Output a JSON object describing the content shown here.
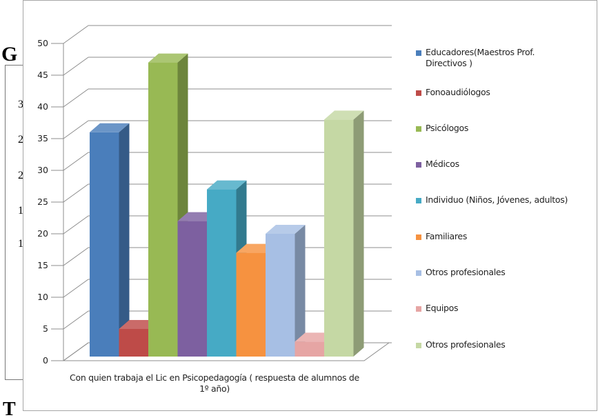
{
  "background_document": {
    "heading_fragment": "G",
    "bottom_fragment": "T",
    "side_fragments": [
      "3",
      "2",
      "2",
      "1",
      "1"
    ]
  },
  "chart_data": {
    "type": "bar",
    "style": "3d-clustered-column",
    "xlabel": "Con quien trabaja el Lic en Psicopedagogía ( respuesta de alumnos de 1º año)",
    "ylabel": "",
    "ylim": [
      0,
      50
    ],
    "y_ticks": [
      0,
      5,
      10,
      15,
      20,
      25,
      30,
      35,
      40,
      45,
      50
    ],
    "grid": true,
    "legend_position": "right",
    "series": [
      {
        "name": "Educadores(Maestros Prof. Directivos )",
        "value": 36,
        "color": "#4a7ebb"
      },
      {
        "name": "Fonoaudiólogos",
        "value": 5,
        "color": "#be4b48"
      },
      {
        "name": "Psicólogos",
        "value": 47,
        "color": "#98b954"
      },
      {
        "name": "Médicos",
        "value": 22,
        "color": "#7d60a0"
      },
      {
        "name": "Individuo (Niños, Jóvenes, adultos)",
        "value": 27,
        "color": "#46aac5"
      },
      {
        "name": "Familiares",
        "value": 17,
        "color": "#f69240"
      },
      {
        "name": "Otros profesionales",
        "value": 20,
        "color": "#a7bfe4"
      },
      {
        "name": "Equipos",
        "value": 3,
        "color": "#e6a5a4"
      },
      {
        "name": "Otros profesionales",
        "value": 38,
        "color": "#c5d8a4"
      }
    ]
  }
}
